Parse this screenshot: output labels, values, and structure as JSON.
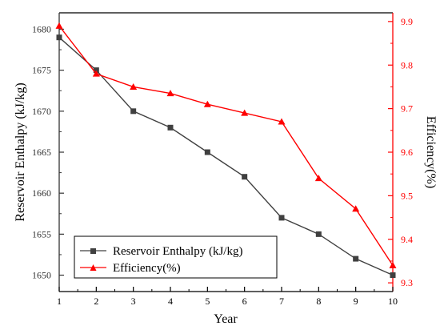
{
  "chart_data": {
    "type": "line",
    "title": "",
    "xlabel": "Year",
    "ylabel": "Reservoir Enthalpy (kJ/kg)",
    "y2label": "Efficiency(%)",
    "x": [
      1,
      2,
      3,
      4,
      5,
      6,
      7,
      8,
      9,
      10
    ],
    "xlim": [
      1,
      10
    ],
    "ylim": [
      1648,
      1682
    ],
    "y2lim": [
      9.28,
      9.92
    ],
    "x_ticks": [
      "1",
      "2",
      "3",
      "4",
      "5",
      "6",
      "7",
      "8",
      "9",
      "10"
    ],
    "y_ticks": [
      "1650",
      "1655",
      "1660",
      "1665",
      "1670",
      "1675",
      "1680"
    ],
    "y2_ticks": [
      "9.3",
      "9.4",
      "9.5",
      "9.6",
      "9.7",
      "9.8",
      "9.9"
    ],
    "grid": false,
    "legend_position": "bottom-left",
    "series": [
      {
        "name": "Reservoir Enthalpy (kJ/kg)",
        "axis": "left",
        "marker": "square",
        "color": "#404040",
        "values": [
          1679,
          1675,
          1670,
          1668,
          1665,
          1662,
          1657,
          1655,
          1652,
          1650
        ]
      },
      {
        "name": "Efficiency(%)",
        "axis": "right",
        "marker": "triangle",
        "color": "#ff0000",
        "values": [
          9.89,
          9.78,
          9.75,
          9.735,
          9.71,
          9.69,
          9.67,
          9.54,
          9.47,
          9.34
        ]
      }
    ]
  }
}
